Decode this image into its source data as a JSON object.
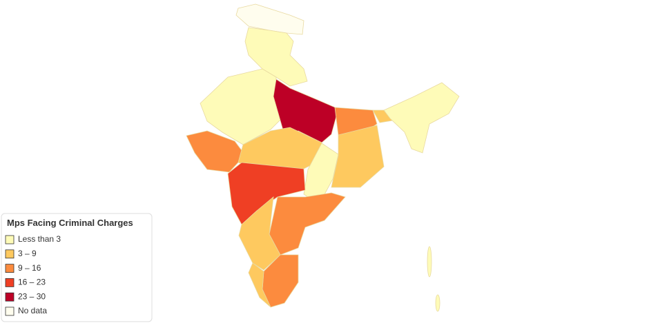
{
  "legend": {
    "title": "Mps Facing Criminal Charges",
    "items": [
      {
        "label": "Less than 3",
        "color": "#fefbb8"
      },
      {
        "label": "3 – 9",
        "color": "#fec95f"
      },
      {
        "label": "9 – 16",
        "color": "#fc8b3e"
      },
      {
        "label": "16 – 23",
        "color": "#ef3f24"
      },
      {
        "label": "23 – 30",
        "color": "#bd0026"
      },
      {
        "label": "No data",
        "color": "#fffdee"
      }
    ]
  }
}
